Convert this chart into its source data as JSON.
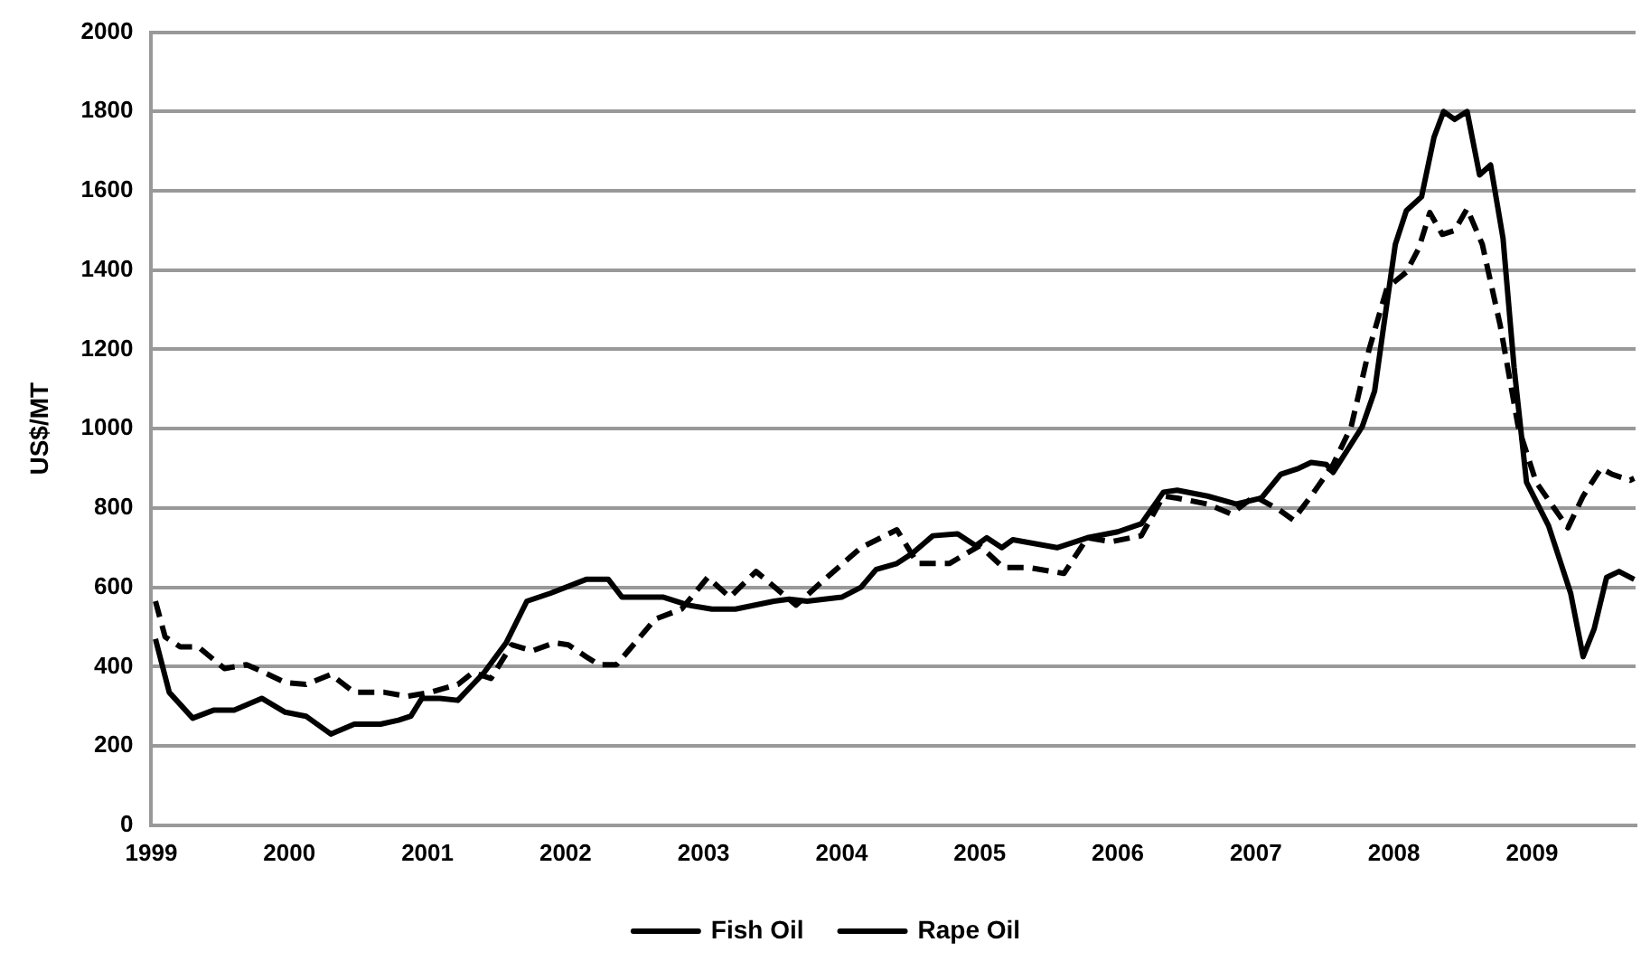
{
  "chart_data": {
    "type": "line",
    "ylabel": "US$/MT",
    "xlim": [
      1999,
      2009.75
    ],
    "xticks": [
      1999,
      2000,
      2001,
      2002,
      2003,
      2004,
      2005,
      2006,
      2007,
      2008,
      2009
    ],
    "ylim": [
      0,
      2000
    ],
    "yticks": [
      0,
      200,
      400,
      600,
      800,
      1000,
      1200,
      1400,
      1600,
      1800,
      2000
    ],
    "grid": "y",
    "legend": "bottom",
    "marker": "none",
    "series": [
      {
        "name": "Fish Oil",
        "color": "#000000",
        "line_style": "solid",
        "x": [
          1999.03,
          1999.13,
          1999.3,
          1999.45,
          1999.6,
          1999.8,
          1999.97,
          2000.12,
          2000.3,
          2000.47,
          2000.66,
          2000.79,
          2000.88,
          2000.96,
          2001.09,
          2001.22,
          2001.41,
          2001.57,
          2001.72,
          2001.89,
          2002.15,
          2002.31,
          2002.41,
          2002.71,
          2002.89,
          2003.06,
          2003.23,
          2003.51,
          2003.62,
          2003.75,
          2004.0,
          2004.14,
          2004.25,
          2004.4,
          2004.51,
          2004.66,
          2004.84,
          2004.97,
          2005.05,
          2005.16,
          2005.24,
          2005.56,
          2005.78,
          2006.0,
          2006.17,
          2006.33,
          2006.43,
          2006.65,
          2006.86,
          2007.04,
          2007.18,
          2007.31,
          2007.4,
          2007.51,
          2007.56,
          2007.77,
          2007.86,
          2007.92,
          2008.01,
          2008.09,
          2008.2,
          2008.29,
          2008.36,
          2008.44,
          2008.53,
          2008.62,
          2008.7,
          2008.79,
          2008.87,
          2008.96,
          2009.12,
          2009.28,
          2009.37,
          2009.45,
          2009.54,
          2009.63,
          2009.74
        ],
        "values": [
          470,
          335,
          270,
          290,
          290,
          320,
          285,
          275,
          230,
          255,
          255,
          265,
          275,
          320,
          320,
          315,
          385,
          460,
          565,
          585,
          620,
          620,
          575,
          575,
          555,
          545,
          545,
          565,
          570,
          565,
          575,
          600,
          645,
          660,
          685,
          730,
          735,
          705,
          725,
          700,
          720,
          700,
          725,
          740,
          760,
          840,
          845,
          830,
          810,
          825,
          885,
          900,
          915,
          910,
          890,
          1005,
          1095,
          1245,
          1465,
          1550,
          1585,
          1735,
          1800,
          1780,
          1800,
          1640,
          1665,
          1480,
          1155,
          865,
          755,
          585,
          425,
          495,
          625,
          640,
          620
        ]
      },
      {
        "name": "Rape Oil",
        "color": "#000000",
        "line_style": "dashed",
        "x": [
          1999.03,
          1999.1,
          1999.21,
          1999.34,
          1999.53,
          1999.69,
          1999.82,
          1999.97,
          2000.12,
          2000.3,
          2000.47,
          2000.69,
          2000.85,
          2001.02,
          2001.22,
          2001.33,
          2001.46,
          2001.61,
          2001.76,
          2001.92,
          2002.02,
          2002.15,
          2002.24,
          2002.37,
          2002.65,
          2002.84,
          2003.03,
          2003.19,
          2003.38,
          2003.67,
          2003.86,
          2004.14,
          2004.4,
          2004.55,
          2004.78,
          2005.0,
          2005.17,
          2005.35,
          2005.61,
          2005.78,
          2005.95,
          2006.17,
          2006.33,
          2006.43,
          2006.65,
          2006.82,
          2006.99,
          2007.17,
          2007.27,
          2007.4,
          2007.56,
          2007.69,
          2007.82,
          2007.95,
          2008.09,
          2008.18,
          2008.26,
          2008.35,
          2008.44,
          2008.53,
          2008.64,
          2008.77,
          2008.9,
          2009.03,
          2009.16,
          2009.26,
          2009.37,
          2009.5,
          2009.58,
          2009.71,
          2009.74
        ],
        "values": [
          565,
          475,
          450,
          450,
          395,
          405,
          385,
          360,
          355,
          380,
          335,
          335,
          325,
          335,
          355,
          385,
          370,
          455,
          440,
          460,
          455,
          425,
          405,
          405,
          520,
          545,
          625,
          575,
          640,
          555,
          615,
          700,
          745,
          660,
          660,
          705,
          650,
          650,
          635,
          725,
          715,
          730,
          830,
          825,
          810,
          785,
          830,
          795,
          770,
          830,
          910,
          1005,
          1200,
          1355,
          1395,
          1455,
          1545,
          1490,
          1500,
          1555,
          1465,
          1260,
          1005,
          865,
          800,
          750,
          830,
          900,
          885,
          870,
          875
        ]
      }
    ]
  }
}
